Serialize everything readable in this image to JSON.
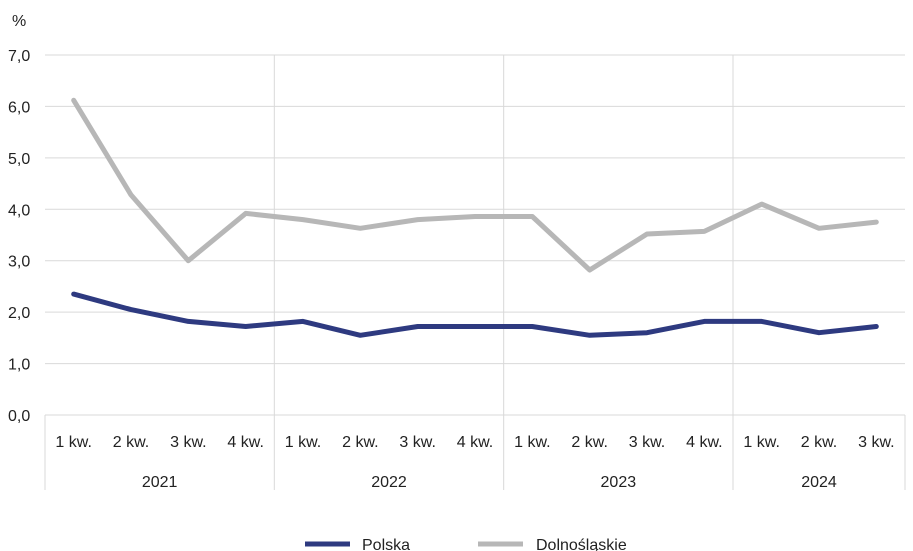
{
  "chart_data": {
    "type": "line",
    "ylabel": "%",
    "ylim": [
      0,
      7
    ],
    "yticks": [
      "0,0",
      "1,0",
      "2,0",
      "3,0",
      "4,0",
      "5,0",
      "6,0",
      "7,0"
    ],
    "categories": [
      "1 kw.",
      "2 kw.",
      "3 kw.",
      "4 kw.",
      "1 kw.",
      "2 kw.",
      "3 kw.",
      "4 kw.",
      "1 kw.",
      "2 kw.",
      "3 kw.",
      "4 kw.",
      "1 kw.",
      "2 kw.",
      "3 kw."
    ],
    "groups": [
      {
        "label": "2021",
        "count": 4
      },
      {
        "label": "2022",
        "count": 4
      },
      {
        "label": "2023",
        "count": 4
      },
      {
        "label": "2024",
        "count": 3
      }
    ],
    "series": [
      {
        "name": "Polska",
        "color": "#2e3a80",
        "values": [
          2.35,
          2.05,
          1.82,
          1.72,
          1.82,
          1.55,
          1.72,
          1.72,
          1.72,
          1.55,
          1.6,
          1.82,
          1.82,
          1.6,
          1.72
        ]
      },
      {
        "name": "Dolnośląskie",
        "color": "#b7b7b7",
        "values": [
          6.12,
          4.28,
          3.0,
          3.92,
          3.8,
          3.63,
          3.8,
          3.86,
          3.86,
          2.82,
          3.52,
          3.57,
          4.1,
          3.63,
          3.75
        ]
      }
    ],
    "grid": true,
    "legend_position": "bottom"
  }
}
